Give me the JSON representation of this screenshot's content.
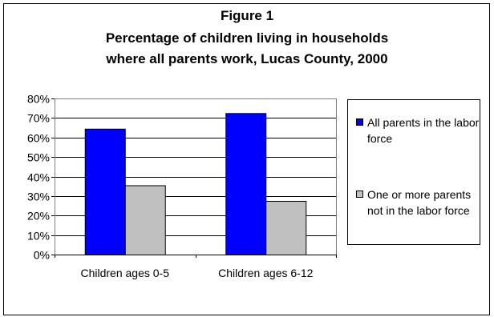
{
  "chart_data": {
    "type": "bar",
    "title": [
      "Figure 1",
      "Percentage of children living in households",
      "where all parents work, Lucas County, 2000"
    ],
    "categories": [
      "Children ages 0-5",
      "Children ages 6-12"
    ],
    "series": [
      {
        "name": "All parents in the labor force",
        "values": [
          0.645,
          0.725
        ],
        "color": "#0000ff"
      },
      {
        "name": "One or more parents not in the labor force",
        "values": [
          0.355,
          0.275
        ],
        "color": "#c0c0c0"
      }
    ],
    "ylim": [
      0,
      0.8
    ],
    "yticks": [
      0,
      0.1,
      0.2,
      0.3,
      0.4,
      0.5,
      0.6,
      0.7,
      0.8
    ],
    "ytick_labels": [
      "0%",
      "10%",
      "20%",
      "30%",
      "40%",
      "50%",
      "60%",
      "70%",
      "80%"
    ],
    "xlabel": "",
    "ylabel": "",
    "grid": true,
    "legend": "right"
  }
}
